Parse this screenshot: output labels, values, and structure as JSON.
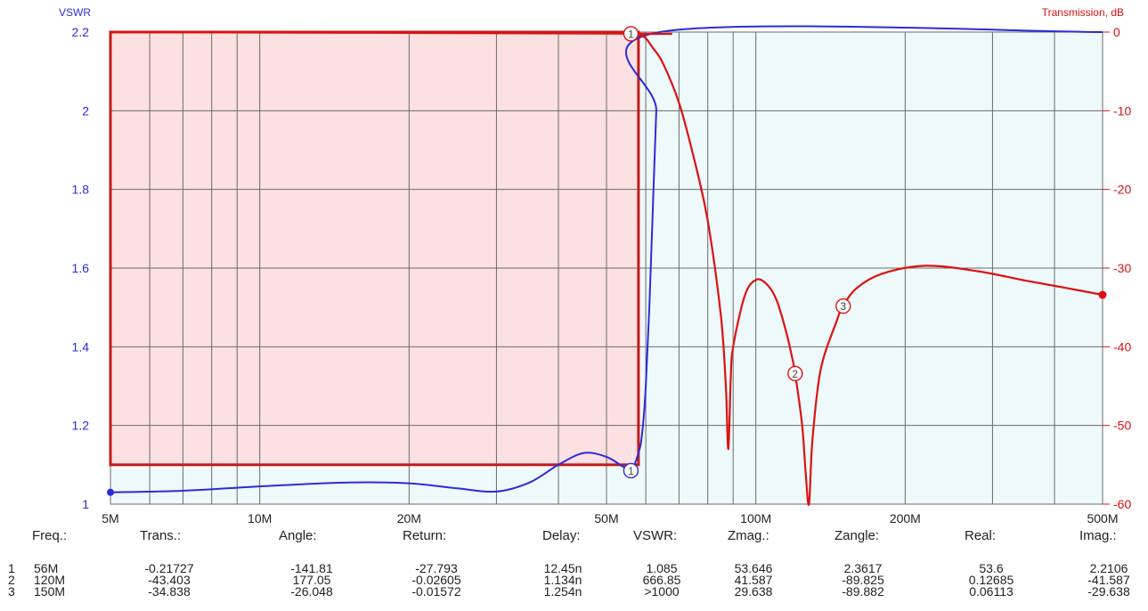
{
  "colors": {
    "vswr": "#2b2bdb",
    "trans": "#dd1111",
    "grid": "#6a6a6a",
    "passband_fill": "#fde0e2",
    "stopband_fill": "#eef9fb"
  },
  "chart_data": {
    "type": "line",
    "left_axis": {
      "label": "VSWR",
      "range": [
        1,
        2.2
      ],
      "ticks": [
        "1",
        "1.2",
        "1.4",
        "1.6",
        "1.8",
        "2",
        "2.2"
      ]
    },
    "right_axis": {
      "label": "Transmission, dB",
      "range": [
        -60,
        0
      ],
      "ticks": [
        "0",
        "-10",
        "-20",
        "-30",
        "-40",
        "-50",
        "-60"
      ]
    },
    "x_axis": {
      "scale": "log",
      "range_hz": [
        5000000,
        500000000
      ],
      "ticks": [
        {
          "label": "5M",
          "value": 5000000
        },
        {
          "label": "10M",
          "value": 10000000
        },
        {
          "label": "20M",
          "value": 20000000
        },
        {
          "label": "50M",
          "value": 50000000
        },
        {
          "label": "100M",
          "value": 100000000
        },
        {
          "label": "200M",
          "value": 200000000
        },
        {
          "label": "500M",
          "value": 500000000
        }
      ]
    },
    "grid": true,
    "passband_box": {
      "x_hz": [
        5000000,
        58000000
      ],
      "vswr": [
        1.1,
        2.2
      ]
    },
    "series": [
      {
        "axis": "left",
        "x_hz": [
          5000000,
          7000000,
          10000000,
          15000000,
          20000000,
          25000000,
          30000000,
          35000000,
          40000000,
          45000000,
          50000000,
          54000000,
          56000000,
          58000000,
          59000000,
          60000000,
          61000000,
          62000000,
          63000000,
          64000000,
          500000000
        ],
        "values": [
          1.03,
          1.034,
          1.045,
          1.055,
          1.053,
          1.04,
          1.032,
          1.055,
          1.1,
          1.13,
          1.12,
          1.095,
          1.085,
          1.13,
          1.18,
          1.3,
          1.5,
          1.75,
          2.0,
          2.2,
          2.2
        ]
      },
      {
        "axis": "right",
        "x_hz": [
          5000000,
          56000000,
          58000000,
          60000000,
          62000000,
          65000000,
          70000000,
          75000000,
          80000000,
          85000000,
          87000000,
          88000000,
          89000000,
          90000000,
          95000000,
          100000000,
          105000000,
          110000000,
          115000000,
          118000000,
          120000000,
          124000000,
          126000000,
          128000000,
          130000000,
          135000000,
          145000000,
          150000000,
          160000000,
          180000000,
          220000000,
          280000000,
          350000000,
          420000000,
          500000000
        ],
        "values": [
          0,
          -0.2,
          -0.3,
          -0.8,
          -2,
          -4,
          -9,
          -16,
          -24,
          -36,
          -45,
          -53,
          -44,
          -40,
          -33.5,
          -31.5,
          -32,
          -34,
          -38,
          -41,
          -43.4,
          -50,
          -56,
          -60,
          -52,
          -43,
          -37,
          -34.8,
          -32.5,
          -30.7,
          -29.7,
          -30.4,
          -31.6,
          -32.5,
          -33.4
        ]
      }
    ],
    "markers": [
      {
        "id": "1",
        "series": "vswr",
        "x_hz": 56000000,
        "value": 1.085
      },
      {
        "id": "1",
        "series": "trans",
        "x_hz": 56000000,
        "value": -0.21727
      },
      {
        "id": "2",
        "series": "trans",
        "x_hz": 120000000,
        "value": -43.403
      },
      {
        "id": "3",
        "series": "trans",
        "x_hz": 150000000,
        "value": -34.838
      }
    ]
  },
  "table": {
    "headers": [
      "Freq.:",
      "Trans.:",
      "Angle:",
      "Return:",
      "Delay:",
      "VSWR:",
      "Zmag.:",
      "Zangle:",
      "Real:",
      "Imag.:"
    ],
    "rows": [
      {
        "idx": "1",
        "freq": "56M",
        "trans": "-0.21727",
        "angle": "-141.81",
        "return": "-27.793",
        "delay": "12.45n",
        "vswr": "1.085",
        "zmag": "53.646",
        "zangle": "2.3617",
        "real": "53.6",
        "imag": "2.2106"
      },
      {
        "idx": "2",
        "freq": "120M",
        "trans": "-43.403",
        "angle": "177.05",
        "return": "-0.02605",
        "delay": "1.134n",
        "vswr": "666.85",
        "zmag": "41.587",
        "zangle": "-89.825",
        "real": "0.12685",
        "imag": "-41.587"
      },
      {
        "idx": "3",
        "freq": "150M",
        "trans": "-34.838",
        "angle": "-26.048",
        "return": "-0.01572",
        "delay": "1.254n",
        "vswr": ">1000",
        "zmag": "29.638",
        "zangle": "-89.882",
        "real": "0.06113",
        "imag": "-29.638"
      }
    ]
  }
}
